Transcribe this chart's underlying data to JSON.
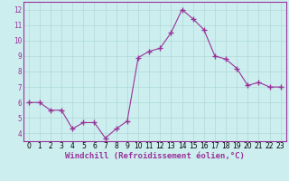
{
  "x": [
    0,
    1,
    2,
    3,
    4,
    5,
    6,
    7,
    8,
    9,
    10,
    11,
    12,
    13,
    14,
    15,
    16,
    17,
    18,
    19,
    20,
    21,
    22,
    23
  ],
  "y": [
    6.0,
    6.0,
    5.5,
    5.5,
    4.3,
    4.7,
    4.7,
    3.7,
    4.3,
    4.8,
    8.9,
    9.3,
    9.5,
    10.5,
    12.0,
    11.4,
    10.7,
    9.0,
    8.8,
    8.2,
    7.1,
    7.3,
    7.0,
    7.0
  ],
  "line_color": "#993399",
  "marker": "+",
  "marker_size": 4,
  "line_width": 0.8,
  "xlabel": "Windchill (Refroidissement éolien,°C)",
  "xlabel_fontsize": 6.5,
  "ylim": [
    3.5,
    12.5
  ],
  "xlim": [
    -0.5,
    23.5
  ],
  "yticks": [
    4,
    5,
    6,
    7,
    8,
    9,
    10,
    11,
    12
  ],
  "xticks": [
    0,
    1,
    2,
    3,
    4,
    5,
    6,
    7,
    8,
    9,
    10,
    11,
    12,
    13,
    14,
    15,
    16,
    17,
    18,
    19,
    20,
    21,
    22,
    23
  ],
  "grid_color": "#b0d8d8",
  "bg_color": "#cceeee",
  "tick_fontsize": 5.5,
  "tick_label_color": "#993399",
  "spine_color": "#993399"
}
